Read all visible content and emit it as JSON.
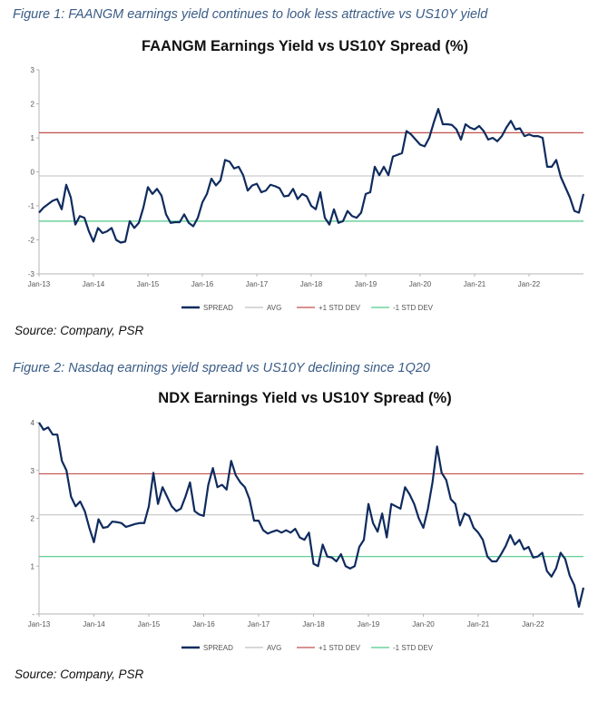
{
  "figure1_caption": "Figure 1: FAANGM earnings yield continues to look less attractive vs US10Y yield",
  "figure1_source": "Source: Company, PSR",
  "figure2_caption": "Figure 2: Nasdaq earnings yield spread vs US10Y declining since 1Q20",
  "figure2_source": "Source: Company, PSR",
  "colors": {
    "spread": "#0f2b5e",
    "avg": "#bfbfbf",
    "plus_std": "#c0504d",
    "minus_std": "#4fc98a",
    "caption": "#3a5c86"
  },
  "chart_data": [
    {
      "type": "line",
      "title": "FAANGM Earnings Yield vs US10Y Spread (%)",
      "xlabel": "",
      "ylabel": "",
      "x_tick_labels": [
        "Jan-13",
        "Jan-14",
        "Jan-15",
        "Jan-16",
        "Jan-17",
        "Jan-18",
        "Jan-19",
        "Jan-20",
        "Jan-21",
        "Jan-22"
      ],
      "y_ticks": [
        -3,
        -2,
        -1,
        0,
        1,
        2,
        3
      ],
      "ylim": [
        -3,
        3
      ],
      "x_start": "2013-01",
      "grid": false,
      "legend_position": "bottom",
      "series": [
        {
          "name": "SPREAD",
          "style": "line",
          "values": [
            -1.2,
            -1.05,
            -0.95,
            -0.85,
            -0.8,
            -1.1,
            -0.38,
            -0.75,
            -1.55,
            -1.3,
            -1.35,
            -1.75,
            -2.05,
            -1.65,
            -1.8,
            -1.75,
            -1.65,
            -2.0,
            -2.08,
            -2.05,
            -1.45,
            -1.65,
            -1.5,
            -1.05,
            -0.45,
            -0.65,
            -0.5,
            -0.7,
            -1.25,
            -1.5,
            -1.48,
            -1.48,
            -1.25,
            -1.5,
            -1.6,
            -1.35,
            -0.9,
            -0.65,
            -0.2,
            -0.4,
            -0.25,
            0.35,
            0.3,
            0.1,
            0.15,
            -0.1,
            -0.55,
            -0.4,
            -0.35,
            -0.6,
            -0.55,
            -0.38,
            -0.42,
            -0.48,
            -0.72,
            -0.7,
            -0.5,
            -0.8,
            -0.65,
            -0.72,
            -1.0,
            -1.1,
            -0.6,
            -1.35,
            -1.55,
            -1.1,
            -1.5,
            -1.45,
            -1.15,
            -1.3,
            -1.35,
            -1.2,
            -0.65,
            -0.6,
            0.15,
            -0.1,
            0.15,
            -0.1,
            0.45,
            0.5,
            0.55,
            1.2,
            1.1,
            0.95,
            0.8,
            0.75,
            1.0,
            1.45,
            1.85,
            1.4,
            1.4,
            1.38,
            1.25,
            0.95,
            1.4,
            1.3,
            1.25,
            1.35,
            1.2,
            0.95,
            1.0,
            0.9,
            1.05,
            1.3,
            1.5,
            1.25,
            1.28,
            1.05,
            1.1,
            1.05,
            1.05,
            1.0,
            0.15,
            0.15,
            0.35,
            -0.15,
            -0.45,
            -0.75,
            -1.15,
            -1.2,
            -0.65
          ]
        },
        {
          "name": "AVG",
          "style": "flat",
          "value": -0.12
        },
        {
          "name": "+1 STD DEV",
          "style": "flat",
          "value": 1.15
        },
        {
          "name": "-1 STD DEV",
          "style": "flat",
          "value": -1.45
        }
      ]
    },
    {
      "type": "line",
      "title": "NDX Earnings Yield vs US10Y Spread (%)",
      "xlabel": "",
      "ylabel": "",
      "x_tick_labels": [
        "Jan-13",
        "Jan-14",
        "Jan-15",
        "Jan-16",
        "Jan-17",
        "Jan-18",
        "Jan-19",
        "Jan-20",
        "Jan-21",
        "Jan-22"
      ],
      "y_ticks": [
        0,
        1,
        2,
        3,
        4
      ],
      "y_tick_labels": [
        "-",
        "1",
        "2",
        "3",
        "4"
      ],
      "ylim": [
        0,
        4
      ],
      "x_start": "2013-01",
      "grid": false,
      "legend_position": "bottom",
      "series": [
        {
          "name": "SPREAD",
          "style": "line",
          "values": [
            4.0,
            3.85,
            3.9,
            3.75,
            3.75,
            3.2,
            3.0,
            2.45,
            2.25,
            2.35,
            2.15,
            1.8,
            1.5,
            1.98,
            1.8,
            1.82,
            1.93,
            1.92,
            1.9,
            1.82,
            1.85,
            1.88,
            1.9,
            1.9,
            2.25,
            2.95,
            2.3,
            2.65,
            2.45,
            2.25,
            2.15,
            2.2,
            2.45,
            2.75,
            2.15,
            2.08,
            2.05,
            2.7,
            3.05,
            2.65,
            2.7,
            2.6,
            3.2,
            2.9,
            2.75,
            2.65,
            2.4,
            1.95,
            1.95,
            1.75,
            1.68,
            1.72,
            1.75,
            1.7,
            1.75,
            1.7,
            1.78,
            1.6,
            1.55,
            1.7,
            1.05,
            1.0,
            1.45,
            1.2,
            1.18,
            1.1,
            1.25,
            1.0,
            0.95,
            1.0,
            1.4,
            1.55,
            2.3,
            1.9,
            1.72,
            2.1,
            1.6,
            2.3,
            2.25,
            2.2,
            2.65,
            2.5,
            2.3,
            2.0,
            1.8,
            2.2,
            2.75,
            3.5,
            2.95,
            2.8,
            2.4,
            2.3,
            1.85,
            2.1,
            2.05,
            1.8,
            1.7,
            1.55,
            1.2,
            1.1,
            1.1,
            1.25,
            1.42,
            1.65,
            1.45,
            1.55,
            1.35,
            1.4,
            1.18,
            1.2,
            1.28,
            0.9,
            0.78,
            0.95,
            1.28,
            1.15,
            0.8,
            0.6,
            0.15,
            0.55
          ]
        },
        {
          "name": "AVG",
          "style": "flat",
          "value": 2.07
        },
        {
          "name": "+1 STD DEV",
          "style": "flat",
          "value": 2.93
        },
        {
          "name": "-1 STD DEV",
          "style": "flat",
          "value": 1.2
        }
      ]
    }
  ]
}
